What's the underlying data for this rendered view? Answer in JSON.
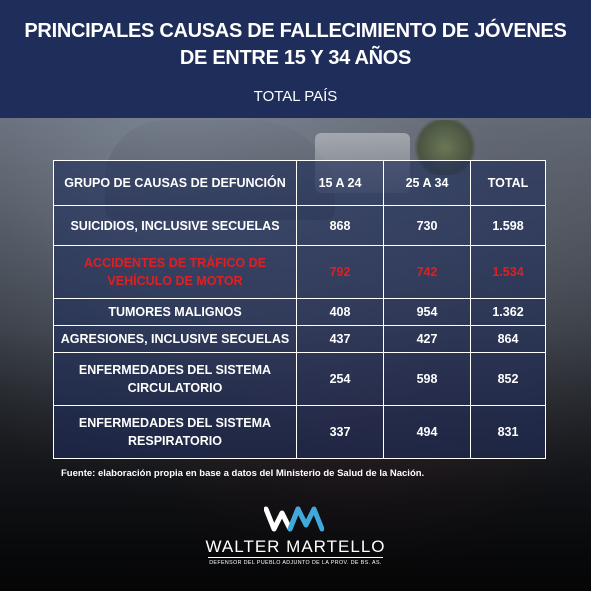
{
  "header": {
    "title_line1": "PRINCIPALES CAUSAS DE FALLECIMIENTO DE JÓVENES",
    "title_line2": "DE ENTRE 15 Y 34 AÑOS",
    "subtitle": "TOTAL PAÍS"
  },
  "chart_data": {
    "type": "table",
    "columns": [
      "GRUPO DE CAUSAS DE DEFUNCIÓN",
      "15 A 24",
      "25 A 34",
      "TOTAL"
    ],
    "rows": [
      {
        "cause": "SUICIDIOS, INCLUSIVE SECUELAS",
        "age_15_24": "868",
        "age_25_34": "730",
        "total": "1.598",
        "highlight": false
      },
      {
        "cause": "ACCIDENTES DE TRÁFICO DE VEHÍCULO DE MOTOR",
        "age_15_24": "792",
        "age_25_34": "742",
        "total": "1.534",
        "highlight": true
      },
      {
        "cause": "TUMORES MALIGNOS",
        "age_15_24": "408",
        "age_25_34": "954",
        "total": "1.362",
        "highlight": false
      },
      {
        "cause": "AGRESIONES, INCLUSIVE SECUELAS",
        "age_15_24": "437",
        "age_25_34": "427",
        "total": "864",
        "highlight": false
      },
      {
        "cause": "ENFERMEDADES DEL SISTEMA CIRCULATORIO",
        "age_15_24": "254",
        "age_25_34": "598",
        "total": "852",
        "highlight": false
      },
      {
        "cause": "ENFERMEDADES DEL SISTEMA RESPIRATORIO",
        "age_15_24": "337",
        "age_25_34": "494",
        "total": "831",
        "highlight": false
      }
    ],
    "highlight_color": "#e02020"
  },
  "footnote": "Fuente: elaboración propia en base a datos del Ministerio de Salud de la Nación.",
  "logo": {
    "name": "WALTER MARTELLO",
    "tagline": "DEFENSOR DEL PUEBLO ADJUNTO DE LA PROV. DE BS. AS."
  },
  "colors": {
    "header_bg": "#1f2d5a",
    "logo_accent": "#3fa9dc"
  }
}
